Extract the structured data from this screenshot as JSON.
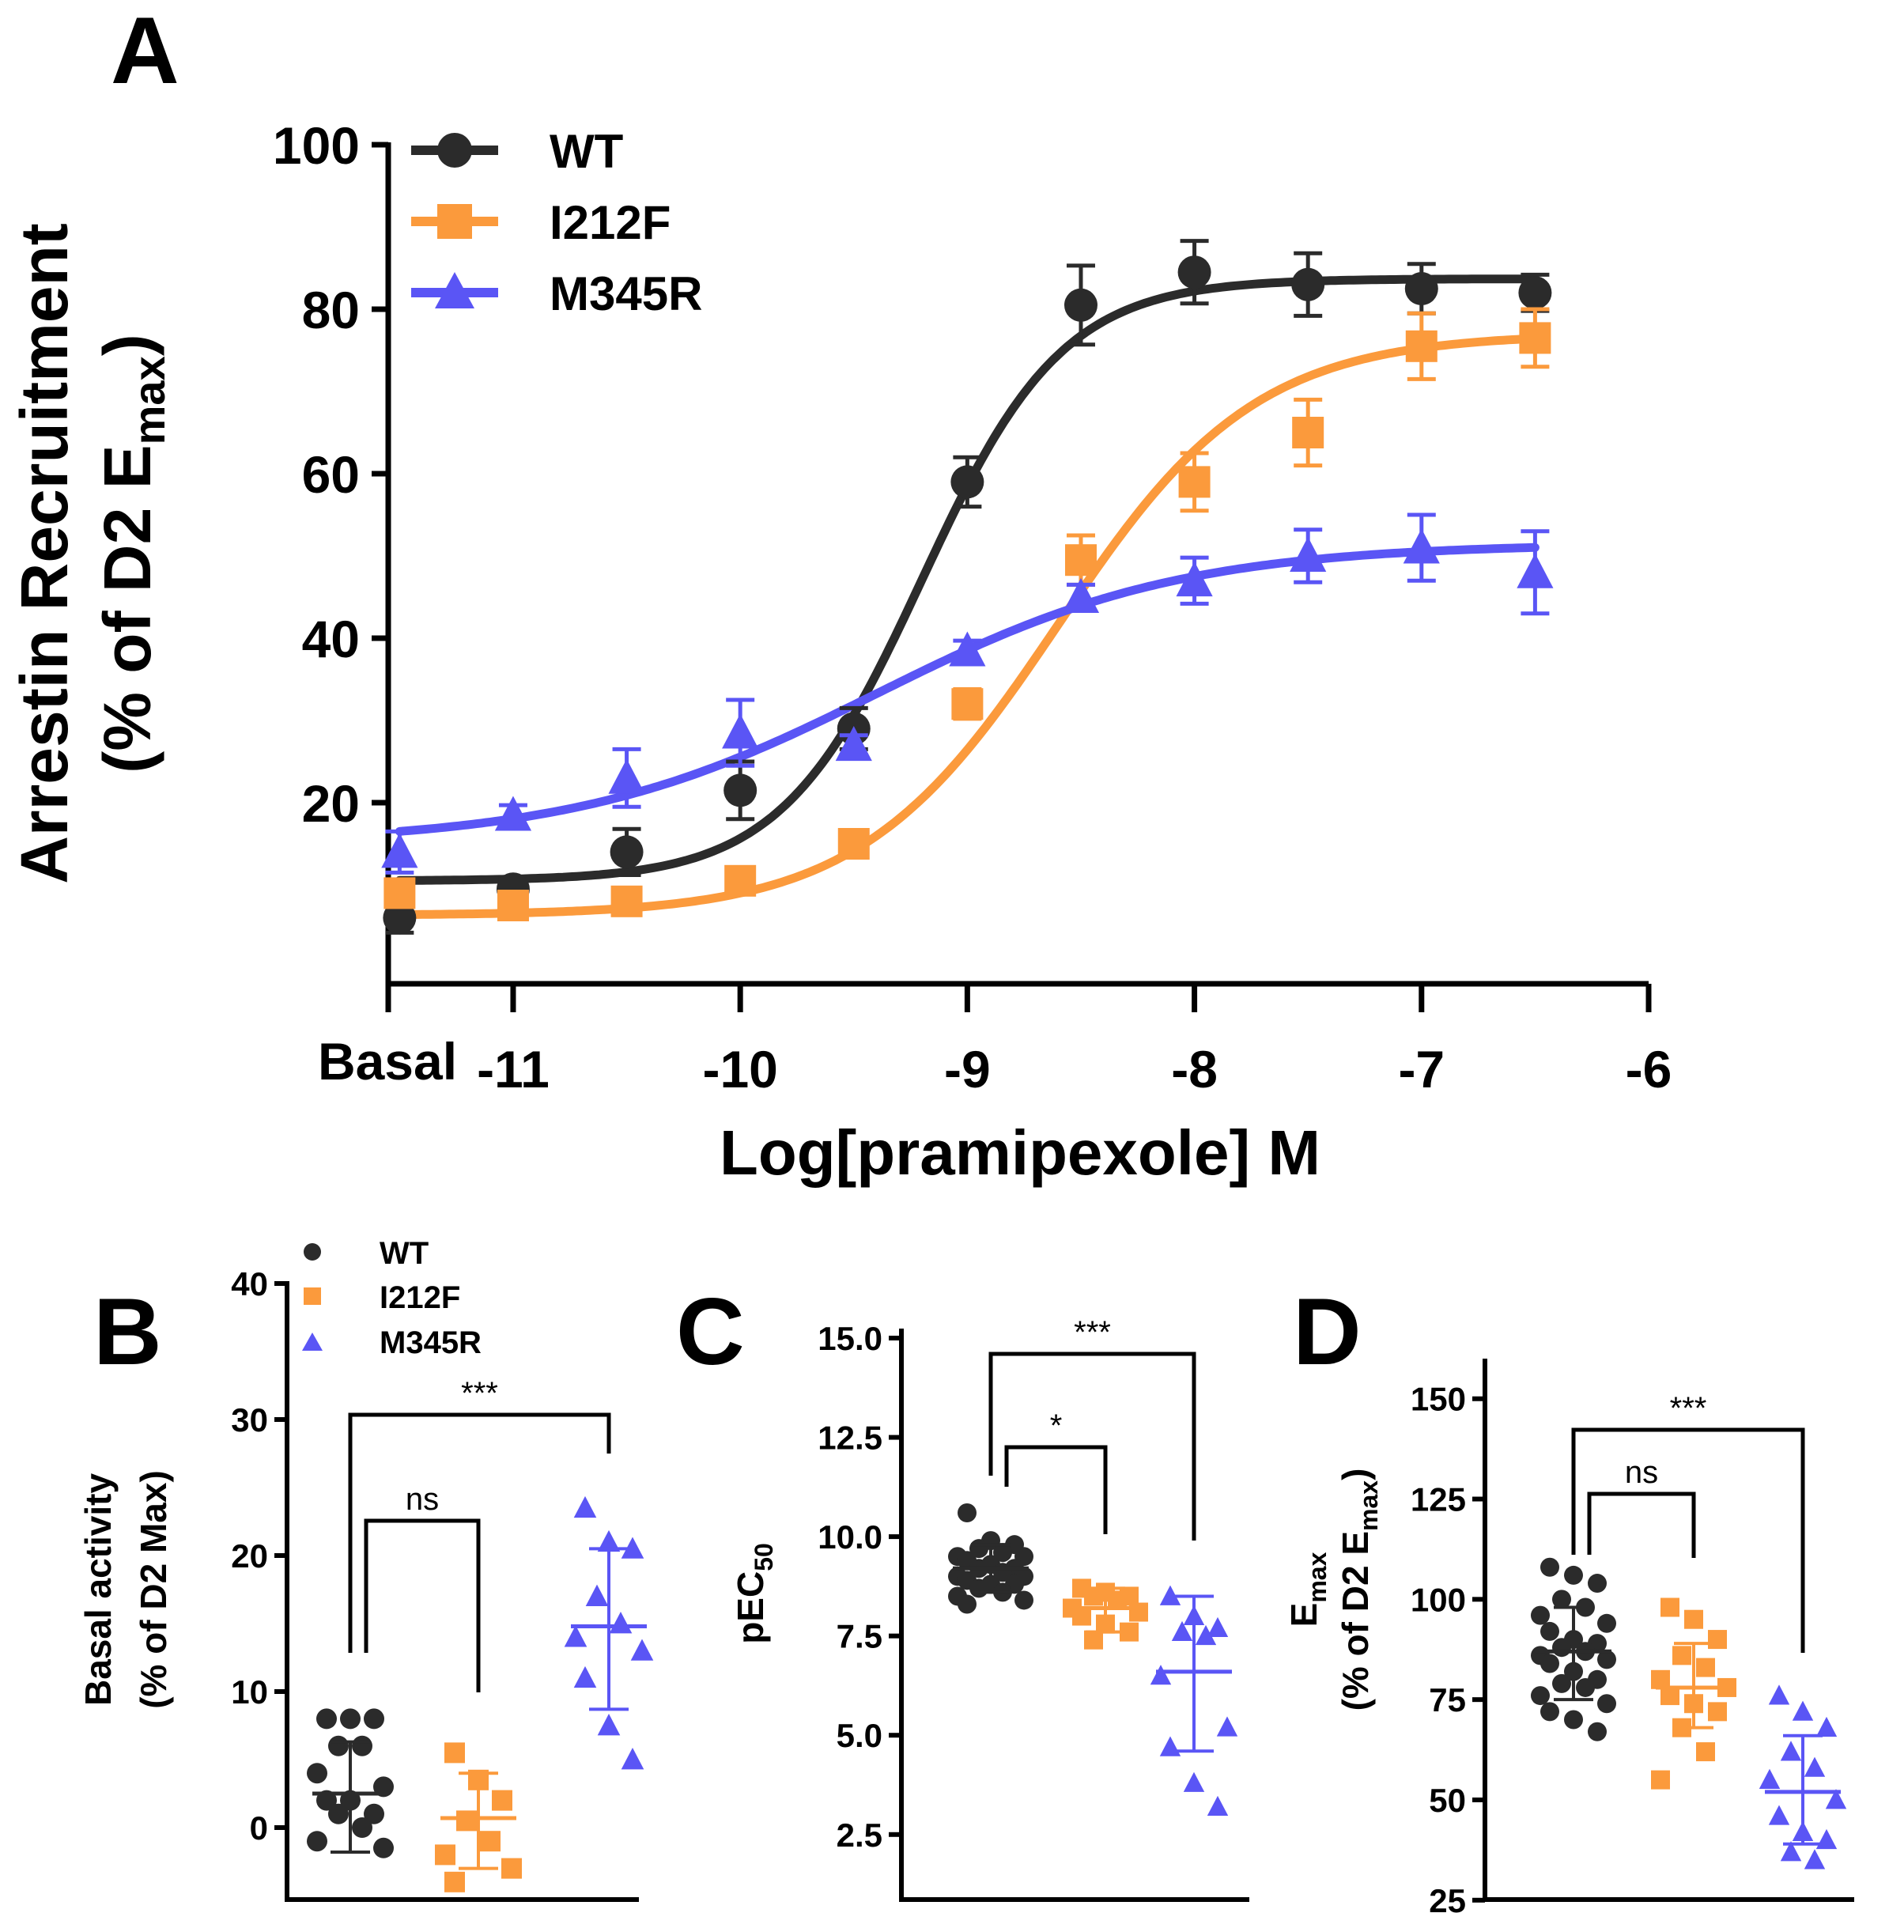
{
  "colors": {
    "WT": "#2b2b2b",
    "I212F": "#fb9a3c",
    "M345R": "#5a55f5"
  },
  "panel_labels": [
    "A",
    "B",
    "C",
    "D"
  ],
  "chart_data": [
    {
      "panel": "A",
      "type": "line",
      "title": "",
      "xlabel": "Log[pramipexole] M",
      "ylabel_line1": "Arrestin Recruitment",
      "ylabel_line2_prefix": "(% of D2 E",
      "ylabel_line2_sub": "max",
      "ylabel_line2_suffix": ")",
      "xlim": [
        -11.55,
        -6
      ],
      "ylim": [
        0,
        100
      ],
      "xticks": [
        -11,
        -10,
        -9,
        -8,
        -7,
        -6
      ],
      "xtick_labels": [
        "-11",
        "-10",
        "-9",
        "-8",
        "-7",
        "-6"
      ],
      "basal_label": "Basal",
      "yticks": [
        20,
        40,
        60,
        80,
        100
      ],
      "ytick_labels": [
        "20",
        "40",
        "60",
        "80",
        "100"
      ],
      "legend_position": "top-left",
      "series": [
        {
          "name": "WT",
          "marker": "circle",
          "x": [
            -11.5,
            -11,
            -10.5,
            -10,
            -9.5,
            -9,
            -8.5,
            -8,
            -7.5,
            -7,
            -6.5
          ],
          "y": [
            6,
            9.5,
            14,
            21.5,
            29,
            59,
            80.5,
            84.5,
            83,
            82.5,
            82
          ],
          "err": [
            1.8,
            1.2,
            2.8,
            3.5,
            2.5,
            3,
            4.8,
            3.8,
            3.8,
            3,
            2.2
          ],
          "fit": {
            "bottom": 10.5,
            "top": 83.7,
            "logEC50": -9.2,
            "hill": 1.4
          }
        },
        {
          "name": "I212F",
          "marker": "square",
          "x": [
            -11.5,
            -11,
            -10.5,
            -10,
            -9.5,
            -9,
            -8.5,
            -8,
            -7.5,
            -7,
            -6.5
          ],
          "y": [
            9,
            7.5,
            8,
            10.5,
            15,
            32,
            49.5,
            59,
            65,
            75.5,
            76.5
          ],
          "err": [
            1.5,
            1.2,
            1.5,
            1.5,
            1.5,
            1.8,
            3,
            3.5,
            4,
            4,
            3.5
          ],
          "fit": {
            "bottom": 6.3,
            "top": 77,
            "logEC50": -8.6,
            "hill": 1.0
          }
        },
        {
          "name": "M345R",
          "marker": "triangle",
          "x": [
            -11.5,
            -11,
            -10.5,
            -10,
            -9.5,
            -9,
            -8.5,
            -8,
            -7.5,
            -7,
            -6.5
          ],
          "y": [
            14,
            18.5,
            23,
            28.5,
            27,
            38.5,
            45,
            47,
            50,
            51,
            48
          ],
          "err": [
            2.5,
            1.2,
            3.5,
            4,
            1.2,
            1.2,
            1.5,
            2.8,
            3.2,
            4,
            5
          ],
          "fit": {
            "bottom": 15,
            "top": 51.5,
            "logEC50": -9.4,
            "hill": 0.65
          }
        }
      ]
    },
    {
      "panel": "B",
      "type": "scatter",
      "ylabel_line1": "Basal activity",
      "ylabel_line2": "(% of D2 Max)",
      "ylim": [
        -5,
        40
      ],
      "yticks": [
        0,
        10,
        20,
        30,
        40
      ],
      "ytick_labels": [
        "0",
        "10",
        "20",
        "30",
        "40"
      ],
      "legend_position": "top",
      "groups": [
        {
          "name": "WT",
          "marker": "circle",
          "mean": 2.5,
          "sd_low": -1.8,
          "sd_high": 6.3,
          "values": [
            8,
            8,
            8,
            6,
            6,
            4,
            3,
            2,
            2,
            1,
            1,
            0,
            -1,
            -1.5
          ]
        },
        {
          "name": "I212F",
          "marker": "square",
          "mean": 0.7,
          "sd_low": -3.0,
          "sd_high": 4.0,
          "values": [
            5.5,
            3.5,
            2,
            0.5,
            -1,
            -2,
            -3,
            -4
          ]
        },
        {
          "name": "M345R",
          "marker": "triangle",
          "mean": 14.8,
          "sd_low": 8.7,
          "sd_high": 20.5,
          "values": [
            23.5,
            21,
            20.5,
            17,
            15,
            14,
            13,
            11,
            7.5,
            5
          ]
        }
      ],
      "comparisons": [
        {
          "from": 0,
          "to": 1,
          "label": "ns"
        },
        {
          "from": 0,
          "to": 2,
          "label": "***"
        }
      ]
    },
    {
      "panel": "C",
      "type": "scatter",
      "ylabel_prefix": "pEC",
      "ylabel_sub": "50",
      "ylim": [
        1.5,
        15
      ],
      "yticks": [
        2.5,
        5.0,
        7.5,
        10.0,
        12.5,
        15.0
      ],
      "ytick_labels": [
        "2.5",
        "5.0",
        "7.5",
        "10.0",
        "12.5",
        "15.0"
      ],
      "groups": [
        {
          "name": "WT",
          "marker": "circle",
          "mean": 9.2,
          "sd_low": 8.6,
          "sd_high": 9.8,
          "values": [
            10.6,
            9.9,
            9.8,
            9.7,
            9.6,
            9.5,
            9.5,
            9.4,
            9.3,
            9.2,
            9.2,
            9.1,
            9.0,
            9.0,
            8.9,
            8.8,
            8.8,
            8.7,
            8.6,
            8.5,
            8.4,
            8.3
          ]
        },
        {
          "name": "I212F",
          "marker": "square",
          "mean": 8.2,
          "sd_low": 7.6,
          "sd_high": 8.7,
          "values": [
            8.7,
            8.6,
            8.5,
            8.5,
            8.4,
            8.2,
            8.1,
            8.0,
            7.8,
            7.6,
            7.4
          ]
        },
        {
          "name": "M345R",
          "marker": "triangle",
          "mean": 6.6,
          "sd_low": 4.6,
          "sd_high": 8.5,
          "values": [
            8.5,
            8.0,
            7.7,
            7.6,
            7.5,
            6.5,
            5.2,
            4.7,
            3.8,
            3.2
          ]
        }
      ],
      "comparisons": [
        {
          "from": 0,
          "to": 1,
          "label": "*"
        },
        {
          "from": 0,
          "to": 2,
          "label": "***"
        }
      ]
    },
    {
      "panel": "D",
      "type": "scatter",
      "ylabel_line1_prefix": "E",
      "ylabel_line1_sub": "max",
      "ylabel_line2_prefix": "(% of D2 E",
      "ylabel_line2_sub": "max",
      "ylabel_line2_suffix": ")",
      "ylim": [
        22,
        160
      ],
      "yticks": [
        25,
        50,
        75,
        100,
        125,
        150
      ],
      "ytick_labels": [
        "25",
        "50",
        "75",
        "100",
        "125",
        "150"
      ],
      "groups": [
        {
          "name": "WT",
          "marker": "circle",
          "mean": 87,
          "sd_low": 75,
          "sd_high": 98,
          "values": [
            108,
            106,
            104,
            100,
            98,
            96,
            94,
            92,
            90,
            89,
            88,
            87,
            86,
            85,
            84,
            82,
            80,
            79,
            78,
            76,
            74,
            72,
            70,
            67
          ]
        },
        {
          "name": "I212F",
          "marker": "square",
          "mean": 78,
          "sd_low": 68,
          "sd_high": 89,
          "values": [
            98,
            95,
            90,
            86,
            83,
            80,
            78,
            76,
            74,
            72,
            68,
            62,
            55
          ]
        },
        {
          "name": "M345R",
          "marker": "triangle",
          "mean": 52,
          "sd_low": 39,
          "sd_high": 66,
          "values": [
            76,
            72,
            68,
            62,
            58,
            55,
            50,
            46,
            42,
            40,
            37,
            35
          ]
        }
      ],
      "comparisons": [
        {
          "from": 0,
          "to": 1,
          "label": "ns"
        },
        {
          "from": 0,
          "to": 2,
          "label": "***"
        }
      ]
    }
  ]
}
